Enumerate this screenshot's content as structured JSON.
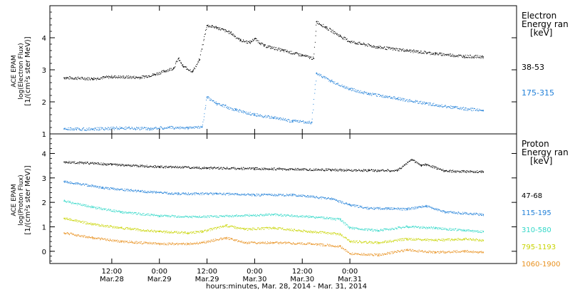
{
  "chart_data": [
    {
      "panel": "top",
      "type": "scatter",
      "ylabel_lines": [
        "ACE EPAM",
        "log(Electron Flux)",
        "[1/(cm²s ster MeV)]"
      ],
      "ylim": [
        1,
        5
      ],
      "yticks": [
        1,
        2,
        3,
        4
      ],
      "legend_title_lines": [
        "Electron",
        "Energy ran",
        "[keV]"
      ],
      "series": [
        {
          "name": "38-53",
          "color": "#000000",
          "points": [
            [
              0,
              2.75
            ],
            [
              0.3,
              2.72
            ],
            [
              0.5,
              2.78
            ],
            [
              0.8,
              2.76
            ],
            [
              0.95,
              2.85
            ],
            [
              1.05,
              2.95
            ],
            [
              1.15,
              3.05
            ],
            [
              1.2,
              3.35
            ],
            [
              1.25,
              3.1
            ],
            [
              1.35,
              2.95
            ],
            [
              1.42,
              3.3
            ],
            [
              1.5,
              4.38
            ],
            [
              1.6,
              4.32
            ],
            [
              1.75,
              4.15
            ],
            [
              1.85,
              3.92
            ],
            [
              1.95,
              3.85
            ],
            [
              2.0,
              3.97
            ],
            [
              2.1,
              3.75
            ],
            [
              2.3,
              3.6
            ],
            [
              2.5,
              3.45
            ],
            [
              2.62,
              3.35
            ],
            [
              2.65,
              4.5
            ],
            [
              2.75,
              4.32
            ],
            [
              2.9,
              4.05
            ],
            [
              3.0,
              3.88
            ],
            [
              3.3,
              3.7
            ],
            [
              3.6,
              3.6
            ],
            [
              3.9,
              3.5
            ],
            [
              4.2,
              3.42
            ],
            [
              4.4,
              3.4
            ]
          ]
        },
        {
          "name": "175-315",
          "color": "#1f7fd8",
          "points": [
            [
              0,
              1.15
            ],
            [
              0.3,
              1.15
            ],
            [
              0.6,
              1.18
            ],
            [
              0.9,
              1.16
            ],
            [
              1.1,
              1.2
            ],
            [
              1.3,
              1.18
            ],
            [
              1.45,
              1.22
            ],
            [
              1.5,
              2.15
            ],
            [
              1.6,
              1.95
            ],
            [
              1.8,
              1.75
            ],
            [
              2.0,
              1.6
            ],
            [
              2.2,
              1.5
            ],
            [
              2.4,
              1.4
            ],
            [
              2.6,
              1.35
            ],
            [
              2.65,
              2.9
            ],
            [
              2.8,
              2.65
            ],
            [
              3.0,
              2.4
            ],
            [
              3.2,
              2.25
            ],
            [
              3.5,
              2.1
            ],
            [
              3.8,
              1.95
            ],
            [
              4.1,
              1.82
            ],
            [
              4.4,
              1.72
            ]
          ]
        }
      ]
    },
    {
      "panel": "bottom",
      "type": "scatter",
      "ylabel_lines": [
        "ACE EPAM",
        "log(Proton Flux)",
        "[1/(cm²s ster MeV)]"
      ],
      "ylim": [
        -0.5,
        4.8
      ],
      "yticks": [
        0,
        1,
        2,
        3,
        4
      ],
      "legend_title_lines": [
        "Proton",
        "Energy ran",
        "[keV]"
      ],
      "series": [
        {
          "name": "47-68",
          "color": "#000000",
          "points": [
            [
              0,
              3.65
            ],
            [
              0.5,
              3.55
            ],
            [
              1.0,
              3.45
            ],
            [
              1.5,
              3.4
            ],
            [
              2.0,
              3.38
            ],
            [
              2.4,
              3.35
            ],
            [
              2.8,
              3.33
            ],
            [
              3.2,
              3.3
            ],
            [
              3.5,
              3.3
            ],
            [
              3.65,
              3.75
            ],
            [
              3.75,
              3.5
            ],
            [
              3.8,
              3.55
            ],
            [
              4.0,
              3.28
            ],
            [
              4.4,
              3.25
            ]
          ]
        },
        {
          "name": "115-195",
          "color": "#1f7fd8",
          "points": [
            [
              0,
              2.85
            ],
            [
              0.4,
              2.6
            ],
            [
              0.8,
              2.45
            ],
            [
              1.2,
              2.35
            ],
            [
              1.6,
              2.35
            ],
            [
              2.0,
              2.3
            ],
            [
              2.4,
              2.3
            ],
            [
              2.8,
              2.15
            ],
            [
              3.0,
              1.9
            ],
            [
              3.2,
              1.75
            ],
            [
              3.4,
              1.75
            ],
            [
              3.6,
              1.72
            ],
            [
              3.8,
              1.85
            ],
            [
              4.0,
              1.6
            ],
            [
              4.4,
              1.5
            ]
          ]
        },
        {
          "name": "310-580",
          "color": "#33d8c8",
          "points": [
            [
              0,
              2.05
            ],
            [
              0.3,
              1.8
            ],
            [
              0.6,
              1.6
            ],
            [
              1.0,
              1.45
            ],
            [
              1.4,
              1.4
            ],
            [
              1.8,
              1.45
            ],
            [
              2.2,
              1.5
            ],
            [
              2.6,
              1.4
            ],
            [
              2.9,
              1.3
            ],
            [
              3.0,
              0.95
            ],
            [
              3.3,
              0.85
            ],
            [
              3.6,
              1.0
            ],
            [
              3.9,
              0.95
            ],
            [
              4.2,
              0.85
            ],
            [
              4.4,
              0.8
            ]
          ]
        },
        {
          "name": "795-1193",
          "color": "#c8d400",
          "points": [
            [
              0,
              1.35
            ],
            [
              0.3,
              1.1
            ],
            [
              0.6,
              0.95
            ],
            [
              1.0,
              0.8
            ],
            [
              1.3,
              0.75
            ],
            [
              1.45,
              0.8
            ],
            [
              1.7,
              1.05
            ],
            [
              1.9,
              0.9
            ],
            [
              2.2,
              0.95
            ],
            [
              2.6,
              0.8
            ],
            [
              2.9,
              0.7
            ],
            [
              3.0,
              0.4
            ],
            [
              3.3,
              0.35
            ],
            [
              3.6,
              0.5
            ],
            [
              3.9,
              0.45
            ],
            [
              4.2,
              0.5
            ],
            [
              4.4,
              0.45
            ]
          ]
        },
        {
          "name": "1060-1900",
          "color": "#e8901e",
          "points": [
            [
              0,
              0.75
            ],
            [
              0.3,
              0.55
            ],
            [
              0.6,
              0.4
            ],
            [
              1.0,
              0.3
            ],
            [
              1.3,
              0.3
            ],
            [
              1.45,
              0.35
            ],
            [
              1.7,
              0.55
            ],
            [
              1.9,
              0.35
            ],
            [
              2.2,
              0.35
            ],
            [
              2.6,
              0.3
            ],
            [
              2.9,
              0.2
            ],
            [
              3.0,
              -0.1
            ],
            [
              3.3,
              -0.15
            ],
            [
              3.6,
              0.05
            ],
            [
              3.9,
              -0.05
            ],
            [
              4.2,
              0.0
            ],
            [
              4.4,
              -0.05
            ]
          ]
        }
      ]
    }
  ],
  "x_axis": {
    "xlim": [
      -0.15,
      4.75
    ],
    "ticks": [
      {
        "x": 0.5,
        "time": "12:00",
        "date": "Mar.28"
      },
      {
        "x": 1.0,
        "time": "0:00",
        "date": "Mar.29"
      },
      {
        "x": 1.5,
        "time": "12:00",
        "date": "Mar.29"
      },
      {
        "x": 2.0,
        "time": "0:00",
        "date": "Mar.30"
      },
      {
        "x": 2.5,
        "time": "12:00",
        "date": "Mar.30"
      },
      {
        "x": 3.0,
        "time": "0:00",
        "date": "Mar.31"
      }
    ],
    "label": "hours:minutes, Mar. 28, 2014 - Mar. 31, 2014"
  }
}
